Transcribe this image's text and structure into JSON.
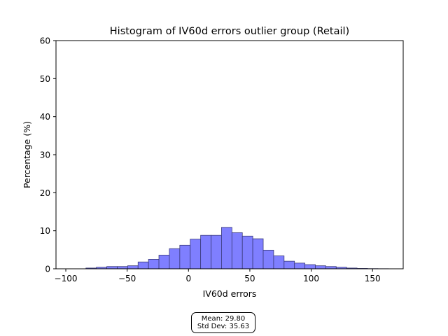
{
  "chart_data": {
    "type": "bar",
    "title": "Histogram of IV60d errors outlier group (Retail)",
    "xlabel": "IV60d errors",
    "ylabel": "Percentage (%)",
    "xlim": [
      -108,
      175
    ],
    "ylim": [
      0,
      60
    ],
    "xticks": [
      -100,
      -50,
      0,
      50,
      100,
      150
    ],
    "yticks": [
      0,
      10,
      20,
      30,
      40,
      50,
      60
    ],
    "bin_width": 8.5,
    "bins": [
      {
        "x": -83.6,
        "value": 0.2
      },
      {
        "x": -75.1,
        "value": 0.4
      },
      {
        "x": -66.6,
        "value": 0.6
      },
      {
        "x": -58.1,
        "value": 0.6
      },
      {
        "x": -49.6,
        "value": 0.8
      },
      {
        "x": -41.1,
        "value": 1.8
      },
      {
        "x": -32.6,
        "value": 2.5
      },
      {
        "x": -24.1,
        "value": 3.6
      },
      {
        "x": -15.6,
        "value": 5.3
      },
      {
        "x": -7.1,
        "value": 6.2
      },
      {
        "x": 1.4,
        "value": 7.8
      },
      {
        "x": 9.9,
        "value": 8.8
      },
      {
        "x": 18.4,
        "value": 8.8
      },
      {
        "x": 26.9,
        "value": 10.9
      },
      {
        "x": 35.4,
        "value": 9.5
      },
      {
        "x": 43.9,
        "value": 8.6
      },
      {
        "x": 52.4,
        "value": 7.9
      },
      {
        "x": 60.9,
        "value": 4.9
      },
      {
        "x": 69.4,
        "value": 3.4
      },
      {
        "x": 77.9,
        "value": 2.0
      },
      {
        "x": 86.4,
        "value": 1.5
      },
      {
        "x": 94.9,
        "value": 1.1
      },
      {
        "x": 103.4,
        "value": 0.8
      },
      {
        "x": 111.9,
        "value": 0.6
      },
      {
        "x": 120.4,
        "value": 0.4
      },
      {
        "x": 128.9,
        "value": 0.2
      },
      {
        "x": 137.4,
        "value": 0.1
      },
      {
        "x": 145.9,
        "value": 0.05
      },
      {
        "x": 154.4,
        "value": 0.03
      }
    ],
    "bar_color": "#7f7fff",
    "bar_edge_color": "#3a3a7a",
    "grid": false
  },
  "stats": {
    "mean": "Mean: 29.80",
    "std": "Std Dev: 35.63"
  }
}
